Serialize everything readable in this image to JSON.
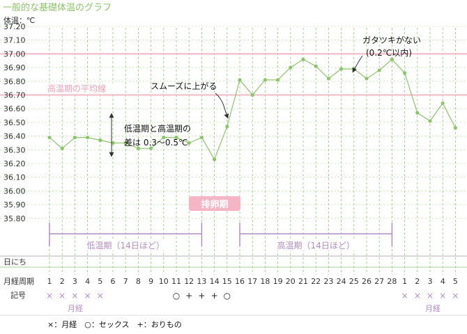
{
  "page_title": "一般的な基礎体温のグラフ",
  "colors": {
    "line": "#8cc46a",
    "grid": "#8cc46a",
    "pink": "#f2b8c6",
    "pink_text": "#eba0b3",
    "purple": "#b38cc4",
    "axis": "#333333",
    "badge_bg": "#f5b5c5"
  },
  "chart_data": {
    "type": "line",
    "ylabel": "体温：℃",
    "ylim": [
      35.8,
      37.2
    ],
    "yticks": [
      "37.20",
      "37.10",
      "37.00",
      "36.90",
      "36.80",
      "36.70",
      "36.60",
      "36.50",
      "36.40",
      "36.30",
      "36.20",
      "36.10",
      "36.00",
      "35.90",
      "35.80"
    ],
    "x": [
      "1",
      "2",
      "3",
      "4",
      "5",
      "6",
      "7",
      "8",
      "9",
      "10",
      "11",
      "12",
      "13",
      "14",
      "15",
      "16",
      "17",
      "18",
      "19",
      "20",
      "21",
      "22",
      "23",
      "24",
      "25",
      "26",
      "27",
      "28",
      "1",
      "2",
      "3",
      "4",
      "5"
    ],
    "series": [
      {
        "values": [
          36.39,
          36.31,
          36.39,
          36.39,
          36.37,
          36.35,
          36.35,
          36.31,
          36.31,
          36.39,
          36.39,
          36.35,
          36.39,
          36.23,
          36.47,
          36.81,
          36.7,
          36.81,
          36.81,
          36.9,
          36.96,
          36.91,
          36.82,
          36.89,
          36.89,
          36.82,
          36.88,
          36.96,
          36.86,
          36.57,
          36.51,
          36.64,
          36.46
        ]
      }
    ],
    "ref_lines": [
      {
        "y": 37.0
      },
      {
        "y": 36.7,
        "label": "高温期の平均線"
      }
    ],
    "grid": true,
    "annotations": {
      "smooth": "スムーズに上がる",
      "no_jagged": "ガタツキがない",
      "no_jagged_sub": "(0.2℃以内)",
      "diff_1": "低温期と高温期の",
      "diff_2": "差は 0.3〜0.5℃",
      "ovulation": "排卵期",
      "low_phase": "低温期（14日ほど）",
      "high_phase": "高温期（14日ほど）"
    },
    "rows": {
      "date_label": "日にち",
      "cycle_label": "月経周期",
      "record_label": "記号",
      "records": [
        "×",
        "×",
        "×",
        "×",
        "×",
        "",
        "",
        "",
        "",
        "",
        "○",
        "+",
        "+",
        "+",
        "○",
        "",
        "",
        "",
        "",
        "",
        "",
        "",
        "",
        "",
        "",
        "",
        "",
        "",
        "×",
        "×",
        "×",
        "×",
        "×"
      ],
      "menses_label_1": "月経",
      "menses_label_2": "月経"
    },
    "legend_text": "×：月経　○：セックス　+：おりもの"
  }
}
